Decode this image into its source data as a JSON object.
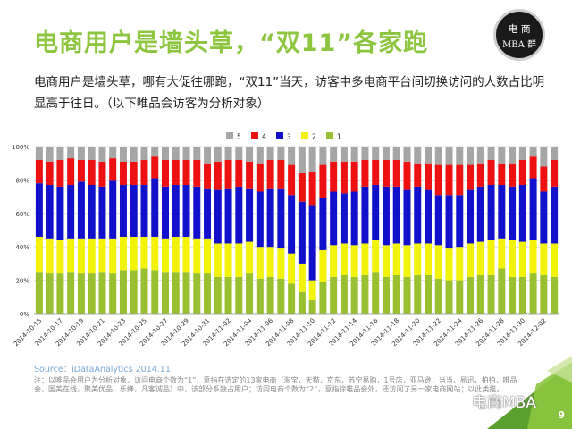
{
  "slide": {
    "title": "电商用户是墙头草，“双11”各家跑",
    "intro": "电商用户是墙头草，哪有大促往哪跑，“双11”当天，访客中多电商平台间切换访问的人数占比明显高于往日。（以下唯品会访客为分析对象）",
    "logo_line1": "电 商",
    "logo_line2": "MBA 群",
    "source": "Source：iDataAnalytics 2014.11.",
    "note": "注：以唯品会用户为分析对象，访问电商个数为“1”，意指在选定的13家电商（淘宝，天猫，京东，苏宁易购，1号店，亚马逊，当当，易迅，拍拍，唯品会，国美在线，聚美优品，乐蜂，凡客诚品）中，该部分系独占用户；访问电商个数为“2”，意指除唯品会外，还访问了另一家电商网站；以此类推。",
    "watermark": "电商MBA",
    "page_number": "9",
    "colors": {
      "accent": "#8cc63f",
      "logo_bg": "#1a1a1a"
    }
  },
  "chart_data": {
    "type": "bar",
    "stacked": true,
    "title": "",
    "xlabel": "",
    "ylabel": "",
    "ylim": [
      0,
      100
    ],
    "y_ticks": [
      "0%",
      "20%",
      "40%",
      "60%",
      "80%",
      "100%"
    ],
    "legend_position": "top",
    "categories": [
      "2014-10-15",
      "2014-10-16",
      "2014-10-17",
      "2014-10-18",
      "2014-10-19",
      "2014-10-20",
      "2014-10-21",
      "2014-10-22",
      "2014-10-23",
      "2014-10-24",
      "2014-10-25",
      "2014-10-26",
      "2014-10-27",
      "2014-10-28",
      "2014-10-29",
      "2014-10-30",
      "2014-10-31",
      "2014-11-01",
      "2014-11-02",
      "2014-11-03",
      "2014-11-04",
      "2014-11-05",
      "2014-11-06",
      "2014-11-07",
      "2014-11-08",
      "2014-11-09",
      "2014-11-10",
      "2014-11-11",
      "2014-11-12",
      "2014-11-13",
      "2014-11-14",
      "2014-11-15",
      "2014-11-16",
      "2014-11-17",
      "2014-11-18",
      "2014-11-19",
      "2014-11-20",
      "2014-11-21",
      "2014-11-22",
      "2014-11-23",
      "2014-11-24",
      "2014-11-25",
      "2014-11-26",
      "2014-11-27",
      "2014-11-28",
      "2014-11-29",
      "2014-11-30",
      "2014-12-01",
      "2014-12-02",
      "2014-12-03"
    ],
    "x_tick_labels": [
      "2014-10-15",
      "2014-10-17",
      "2014-10-19",
      "2014-10-21",
      "2014-10-23",
      "2014-10-25",
      "2014-10-27",
      "2014-10-29",
      "2014-10-31",
      "2014-11-02",
      "2014-11-04",
      "2014-11-06",
      "2014-11-08",
      "2014-11-10",
      "2014-11-12",
      "2014-11-14",
      "2014-11-16",
      "2014-11-18",
      "2014-11-20",
      "2014-11-22",
      "2014-11-24",
      "2014-11-26",
      "2014-11-28",
      "2014-11-30",
      "2014-12-02"
    ],
    "series": [
      {
        "name": "1",
        "color": "#99c031",
        "values": [
          25,
          24,
          24,
          25,
          24,
          24,
          25,
          24,
          26,
          26,
          27,
          26,
          25,
          25,
          25,
          24,
          24,
          22,
          22,
          22,
          24,
          21,
          22,
          21,
          18,
          13,
          8,
          19,
          22,
          23,
          22,
          23,
          25,
          22,
          23,
          22,
          23,
          23,
          21,
          20,
          20,
          22,
          23,
          23,
          27,
          22,
          22,
          24,
          23,
          22
        ]
      },
      {
        "name": "2",
        "color": "#f2f20a",
        "values": [
          21,
          21,
          20,
          20,
          21,
          21,
          20,
          21,
          20,
          20,
          19,
          20,
          20,
          21,
          21,
          21,
          21,
          20,
          20,
          20,
          19,
          19,
          18,
          18,
          18,
          17,
          12,
          19,
          19,
          19,
          19,
          19,
          19,
          19,
          19,
          19,
          19,
          19,
          20,
          19,
          20,
          20,
          20,
          21,
          18,
          22,
          21,
          20,
          19,
          20
        ]
      },
      {
        "name": "3",
        "color": "#1111cc",
        "values": [
          32,
          32,
          32,
          32,
          34,
          32,
          31,
          35,
          31,
          31,
          31,
          35,
          31,
          31,
          31,
          31,
          30,
          32,
          33,
          34,
          32,
          33,
          35,
          36,
          35,
          37,
          45,
          31,
          32,
          30,
          32,
          34,
          33,
          35,
          34,
          33,
          34,
          32,
          30,
          32,
          31,
          32,
          33,
          33,
          32,
          32,
          34,
          37,
          31,
          34
        ]
      },
      {
        "name": "4",
        "color": "#ee1111",
        "values": [
          14,
          14,
          16,
          16,
          13,
          15,
          15,
          13,
          14,
          14,
          15,
          13,
          16,
          15,
          15,
          16,
          15,
          17,
          17,
          16,
          16,
          17,
          17,
          17,
          18,
          17,
          20,
          20,
          18,
          19,
          18,
          16,
          15,
          16,
          16,
          17,
          14,
          16,
          18,
          18,
          18,
          15,
          14,
          15,
          13,
          14,
          15,
          13,
          15,
          16
        ]
      },
      {
        "name": "5",
        "color": "#a6a6a6",
        "values": [
          8,
          9,
          8,
          7,
          8,
          8,
          9,
          7,
          9,
          9,
          8,
          6,
          8,
          8,
          8,
          8,
          10,
          9,
          8,
          8,
          9,
          10,
          8,
          8,
          11,
          16,
          15,
          11,
          9,
          9,
          9,
          8,
          8,
          8,
          8,
          9,
          10,
          10,
          11,
          11,
          11,
          11,
          10,
          8,
          10,
          10,
          8,
          6,
          12,
          8
        ]
      }
    ]
  }
}
